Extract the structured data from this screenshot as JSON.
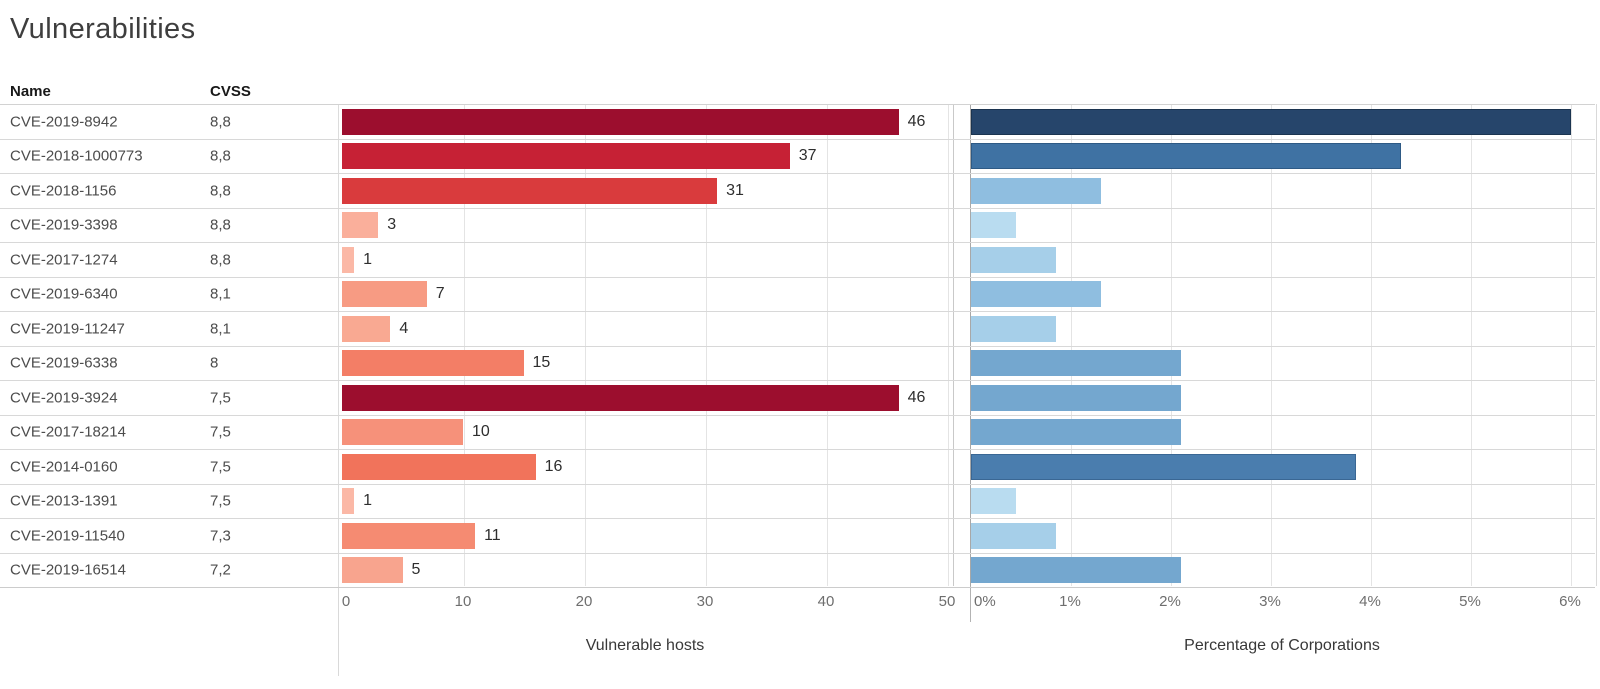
{
  "title": "Vulnerabilities",
  "columns": {
    "name": "Name",
    "cvss": "CVSS"
  },
  "rows": [
    {
      "name": "CVE-2019-8942",
      "cvss": "8,8",
      "hosts": 46,
      "hosts_color": "#9C0E2E",
      "pct": 6.0,
      "pct_color": "#26456B",
      "pct_border": "#1B3450"
    },
    {
      "name": "CVE-2018-1000773",
      "cvss": "8,8",
      "hosts": 37,
      "hosts_color": "#C62135",
      "pct": 4.3,
      "pct_color": "#3F72A3",
      "pct_border": "#2E5A85"
    },
    {
      "name": "CVE-2018-1156",
      "cvss": "8,8",
      "hosts": 31,
      "hosts_color": "#D93B3D",
      "pct": 1.3,
      "pct_color": "#8FBEE0",
      "pct_border": ""
    },
    {
      "name": "CVE-2019-3398",
      "cvss": "8,8",
      "hosts": 3,
      "hosts_color": "#FAAF9B",
      "pct": 0.45,
      "pct_color": "#B9DCF0",
      "pct_border": ""
    },
    {
      "name": "CVE-2017-1274",
      "cvss": "8,8",
      "hosts": 1,
      "hosts_color": "#FBB8A6",
      "pct": 0.85,
      "pct_color": "#A6CFE9",
      "pct_border": ""
    },
    {
      "name": "CVE-2019-6340",
      "cvss": "8,1",
      "hosts": 7,
      "hosts_color": "#F79B83",
      "pct": 1.3,
      "pct_color": "#8FBEE0",
      "pct_border": ""
    },
    {
      "name": "CVE-2019-11247",
      "cvss": "8,1",
      "hosts": 4,
      "hosts_color": "#F9A992",
      "pct": 0.85,
      "pct_color": "#A6CFE9",
      "pct_border": ""
    },
    {
      "name": "CVE-2019-6338",
      "cvss": "8",
      "hosts": 15,
      "hosts_color": "#F37E66",
      "pct": 2.1,
      "pct_color": "#74A7CF",
      "pct_border": ""
    },
    {
      "name": "CVE-2019-3924",
      "cvss": "7,5",
      "hosts": 46,
      "hosts_color": "#9C0E2E",
      "pct": 2.1,
      "pct_color": "#74A7CF",
      "pct_border": ""
    },
    {
      "name": "CVE-2017-18214",
      "cvss": "7,5",
      "hosts": 10,
      "hosts_color": "#F6917A",
      "pct": 2.1,
      "pct_color": "#74A7CF",
      "pct_border": ""
    },
    {
      "name": "CVE-2014-0160",
      "cvss": "7,5",
      "hosts": 16,
      "hosts_color": "#F1735B",
      "pct": 3.85,
      "pct_color": "#4A7DAE",
      "pct_border": "#3A6794"
    },
    {
      "name": "CVE-2013-1391",
      "cvss": "7,5",
      "hosts": 1,
      "hosts_color": "#FBB8A6",
      "pct": 0.45,
      "pct_color": "#B9DCF0",
      "pct_border": ""
    },
    {
      "name": "CVE-2019-11540",
      "cvss": "7,3",
      "hosts": 11,
      "hosts_color": "#F58B72",
      "pct": 0.85,
      "pct_color": "#A6CFE9",
      "pct_border": ""
    },
    {
      "name": "CVE-2019-16514",
      "cvss": "7,2",
      "hosts": 5,
      "hosts_color": "#F8A48E",
      "pct": 2.1,
      "pct_color": "#74A7CF",
      "pct_border": ""
    }
  ],
  "left_axis": {
    "ticks": [
      "0",
      "10",
      "20",
      "30",
      "40",
      "50"
    ],
    "title": "Vulnerable hosts",
    "max": 50
  },
  "right_axis": {
    "ticks": [
      "0%",
      "1%",
      "2%",
      "3%",
      "4%",
      "5%",
      "6%"
    ],
    "title": "Percentage of Corporations",
    "max": 6
  },
  "chart_data": [
    {
      "type": "bar",
      "orientation": "horizontal",
      "title": "Vulnerable hosts",
      "xlabel": "Vulnerable hosts",
      "categories": [
        "CVE-2019-8942",
        "CVE-2018-1000773",
        "CVE-2018-1156",
        "CVE-2019-3398",
        "CVE-2017-1274",
        "CVE-2019-6340",
        "CVE-2019-11247",
        "CVE-2019-6338",
        "CVE-2019-3924",
        "CVE-2017-18214",
        "CVE-2014-0160",
        "CVE-2013-1391",
        "CVE-2019-11540",
        "CVE-2019-16514"
      ],
      "cvss": [
        "8,8",
        "8,8",
        "8,8",
        "8,8",
        "8,8",
        "8,1",
        "8,1",
        "8",
        "7,5",
        "7,5",
        "7,5",
        "7,5",
        "7,3",
        "7,2"
      ],
      "values": [
        46,
        37,
        31,
        3,
        1,
        7,
        4,
        15,
        46,
        10,
        16,
        1,
        11,
        5
      ],
      "xlim": [
        0,
        50
      ],
      "xticks": [
        0,
        10,
        20,
        30,
        40,
        50
      ],
      "grid": true,
      "data_labels": true,
      "color_encoding": "sequential red by value"
    },
    {
      "type": "bar",
      "orientation": "horizontal",
      "title": "Percentage of Corporations",
      "xlabel": "Percentage of Corporations",
      "categories": [
        "CVE-2019-8942",
        "CVE-2018-1000773",
        "CVE-2018-1156",
        "CVE-2019-3398",
        "CVE-2017-1274",
        "CVE-2019-6340",
        "CVE-2019-11247",
        "CVE-2019-6338",
        "CVE-2019-3924",
        "CVE-2017-18214",
        "CVE-2014-0160",
        "CVE-2013-1391",
        "CVE-2019-11540",
        "CVE-2019-16514"
      ],
      "values": [
        6.0,
        4.3,
        1.3,
        0.45,
        0.85,
        1.3,
        0.85,
        2.1,
        2.1,
        2.1,
        3.85,
        0.45,
        0.85,
        2.1
      ],
      "unit": "%",
      "xlim": [
        0,
        6
      ],
      "xticks": [
        "0%",
        "1%",
        "2%",
        "3%",
        "4%",
        "5%",
        "6%"
      ],
      "grid": true,
      "data_labels": false,
      "color_encoding": "sequential blue by value"
    }
  ]
}
